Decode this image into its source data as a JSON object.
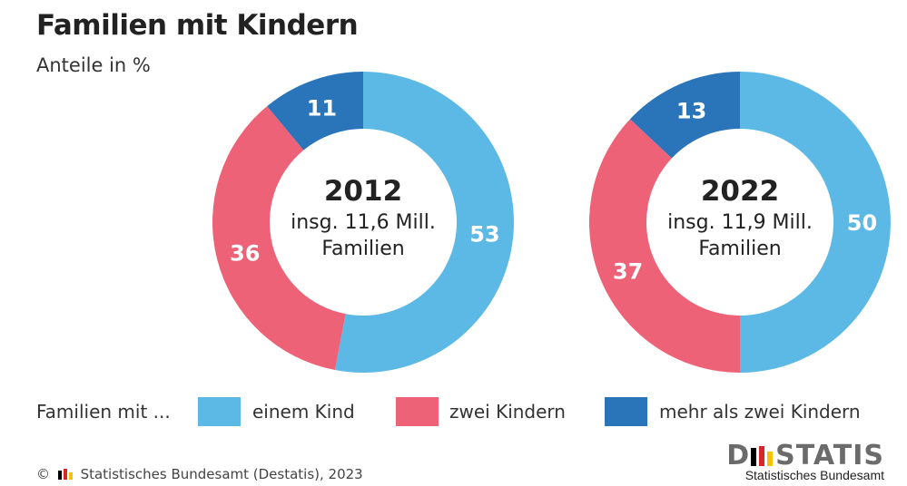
{
  "title": "Familien mit Kindern",
  "subtitle": "Anteile in %",
  "legend": {
    "intro": "Familien mit ...",
    "items": [
      {
        "label": "einem Kind",
        "color": "#5cb9e6"
      },
      {
        "label": "zwei Kindern",
        "color": "#ee6277"
      },
      {
        "label": "mehr als zwei Kindern",
        "color": "#2a74b9"
      }
    ]
  },
  "source": "Statistisches Bundesamt (Destatis), 2023",
  "copyright_symbol": "©",
  "logo": {
    "text_left": "D",
    "text_right": "STATIS",
    "subtitle": "Statistisches Bundesamt"
  },
  "chart_data": [
    {
      "type": "pie",
      "donut": true,
      "center_year": "2012",
      "center_line1": "insg. 11,6 Mill.",
      "center_line2": "Familien",
      "categories": [
        "einem Kind",
        "zwei Kindern",
        "mehr als zwei Kindern"
      ],
      "values": [
        53,
        36,
        11
      ],
      "colors": [
        "#5cb9e6",
        "#ee6277",
        "#2a74b9"
      ]
    },
    {
      "type": "pie",
      "donut": true,
      "center_year": "2022",
      "center_line1": "insg. 11,9 Mill.",
      "center_line2": "Familien",
      "categories": [
        "einem Kind",
        "zwei Kindern",
        "mehr als zwei Kindern"
      ],
      "values": [
        50,
        37,
        13
      ],
      "colors": [
        "#5cb9e6",
        "#ee6277",
        "#2a74b9"
      ]
    }
  ]
}
